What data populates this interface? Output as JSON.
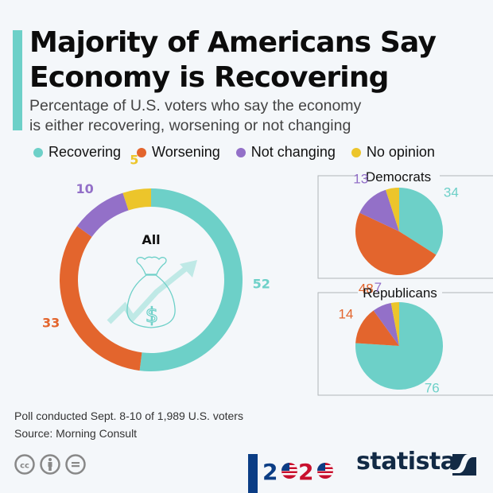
{
  "title_lines": [
    "Majority of Americans Say",
    "Economy is Recovering"
  ],
  "subtitle_lines": [
    "Percentage of U.S. voters who say the economy",
    "is either recovering, worsening or not changing"
  ],
  "colors": {
    "accent": "#6dd0c8",
    "recovering": "#6dd0c8",
    "worsening": "#e3652d",
    "not_changing": "#9370c8",
    "no_opinion": "#ecc52b"
  },
  "chart_data": [
    {
      "type": "pie",
      "variant": "donut",
      "title": "All",
      "categories": [
        "Recovering",
        "Worsening",
        "Not changing",
        "No opinion"
      ],
      "values": [
        52,
        33,
        10,
        5
      ],
      "labels": [
        "52",
        "33",
        "10",
        "5"
      ],
      "unit": "%",
      "start": "top, clockwise from Recovering"
    },
    {
      "type": "pie",
      "title": "Democrats",
      "categories": [
        "Recovering",
        "Worsening",
        "Not changing",
        "No opinion"
      ],
      "values": [
        34,
        48,
        13,
        5
      ],
      "labels": [
        "34",
        "48",
        "13",
        ""
      ],
      "unit": "%"
    },
    {
      "type": "pie",
      "title": "Republicans",
      "categories": [
        "Recovering",
        "Worsening",
        "Not changing",
        "No opinion"
      ],
      "values": [
        76,
        14,
        7,
        3
      ],
      "labels": [
        "76",
        "14",
        "7",
        ""
      ],
      "unit": "%"
    }
  ],
  "legend": [
    {
      "label": "Recovering",
      "key": "recovering"
    },
    {
      "label": "Worsening",
      "key": "worsening"
    },
    {
      "label": "Not changing",
      "key": "not_changing"
    },
    {
      "label": "No opinion",
      "key": "no_opinion"
    }
  ],
  "notes": {
    "poll": "Poll conducted Sept. 8-10 of 1,989 U.S. voters",
    "source": "Source: Morning Consult"
  },
  "footer": {
    "license_icons": [
      "cc-icon",
      "attribution-icon",
      "no-derivatives-icon"
    ],
    "election_logo": "2020",
    "brand": "statista"
  }
}
